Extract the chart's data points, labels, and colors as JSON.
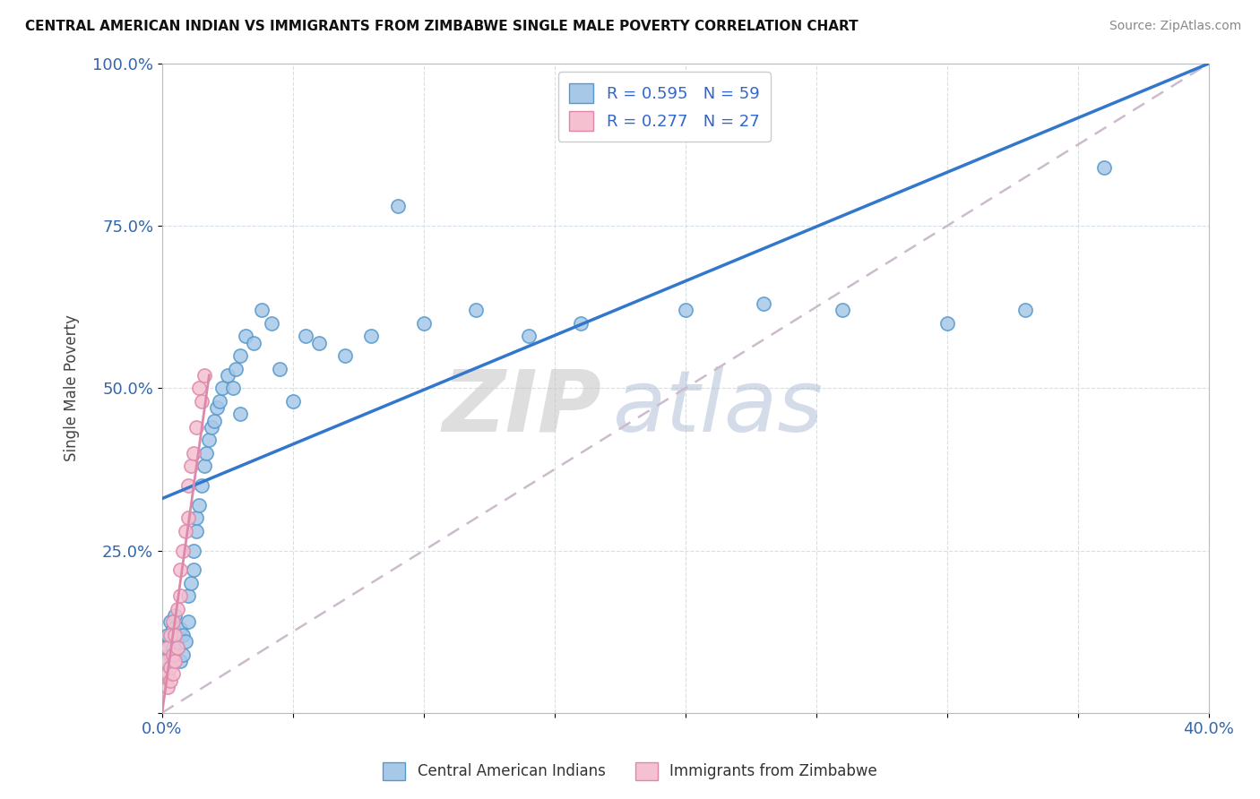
{
  "title": "CENTRAL AMERICAN INDIAN VS IMMIGRANTS FROM ZIMBABWE SINGLE MALE POVERTY CORRELATION CHART",
  "source": "Source: ZipAtlas.com",
  "ylabel": "Single Male Poverty",
  "xlim": [
    0.0,
    0.4
  ],
  "ylim": [
    0.0,
    1.0
  ],
  "blue_R": 0.595,
  "blue_N": 59,
  "pink_R": 0.277,
  "pink_N": 27,
  "blue_color": "#a8c8e8",
  "blue_edge": "#5599cc",
  "pink_color": "#f5c0d0",
  "pink_edge": "#dd88aa",
  "blue_line_color": "#3377cc",
  "gray_line_color": "#ccbbcc",
  "gray_line_style": "--",
  "legend_label_blue": "Central American Indians",
  "legend_label_pink": "Immigrants from Zimbabwe",
  "blue_line_x0": 0.0,
  "blue_line_y0": 0.33,
  "blue_line_x1": 0.4,
  "blue_line_y1": 1.0,
  "gray_line_x0": 0.0,
  "gray_line_y0": 0.0,
  "gray_line_x1": 0.4,
  "gray_line_y1": 1.0,
  "blue_scatter_x": [
    0.001,
    0.002,
    0.002,
    0.003,
    0.003,
    0.004,
    0.004,
    0.005,
    0.005,
    0.006,
    0.006,
    0.007,
    0.007,
    0.008,
    0.008,
    0.009,
    0.01,
    0.01,
    0.011,
    0.012,
    0.012,
    0.013,
    0.013,
    0.014,
    0.015,
    0.016,
    0.017,
    0.018,
    0.019,
    0.02,
    0.021,
    0.022,
    0.023,
    0.025,
    0.027,
    0.028,
    0.03,
    0.032,
    0.035,
    0.038,
    0.042,
    0.05,
    0.06,
    0.07,
    0.08,
    0.1,
    0.12,
    0.14,
    0.16,
    0.2,
    0.23,
    0.26,
    0.3,
    0.33,
    0.36,
    0.03,
    0.045,
    0.055,
    0.09
  ],
  "blue_scatter_y": [
    0.1,
    0.08,
    0.12,
    0.09,
    0.14,
    0.1,
    0.13,
    0.11,
    0.15,
    0.1,
    0.12,
    0.08,
    0.13,
    0.09,
    0.12,
    0.11,
    0.14,
    0.18,
    0.2,
    0.22,
    0.25,
    0.28,
    0.3,
    0.32,
    0.35,
    0.38,
    0.4,
    0.42,
    0.44,
    0.45,
    0.47,
    0.48,
    0.5,
    0.52,
    0.5,
    0.53,
    0.55,
    0.58,
    0.57,
    0.62,
    0.6,
    0.48,
    0.57,
    0.55,
    0.58,
    0.6,
    0.62,
    0.58,
    0.6,
    0.62,
    0.63,
    0.62,
    0.6,
    0.62,
    0.84,
    0.46,
    0.53,
    0.58,
    0.78
  ],
  "pink_scatter_x": [
    0.001,
    0.001,
    0.002,
    0.002,
    0.002,
    0.003,
    0.003,
    0.003,
    0.004,
    0.004,
    0.004,
    0.005,
    0.005,
    0.006,
    0.006,
    0.007,
    0.007,
    0.008,
    0.009,
    0.01,
    0.01,
    0.011,
    0.012,
    0.013,
    0.014,
    0.015,
    0.016
  ],
  "pink_scatter_y": [
    0.06,
    0.08,
    0.04,
    0.06,
    0.1,
    0.05,
    0.07,
    0.12,
    0.06,
    0.09,
    0.14,
    0.08,
    0.12,
    0.1,
    0.16,
    0.18,
    0.22,
    0.25,
    0.28,
    0.3,
    0.35,
    0.38,
    0.4,
    0.44,
    0.5,
    0.48,
    0.52
  ]
}
